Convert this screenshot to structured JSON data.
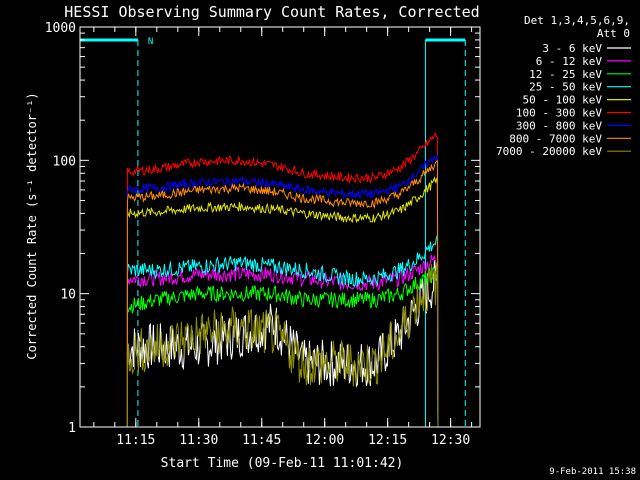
{
  "chart_data": {
    "type": "line",
    "title": "HESSI Observing Summary Count Rates, Corrected",
    "xlabel": "Start Time (09-Feb-11 11:01:42)",
    "ylabel": "Corrected Count Rate (s⁻¹ detector⁻¹)",
    "y_scale": "log",
    "ylim": [
      1,
      1000
    ],
    "xlim": [
      "11:01:42",
      "12:37:00"
    ],
    "x_ticks": [
      "11:15",
      "11:30",
      "11:45",
      "12:00",
      "12:15",
      "12:30"
    ],
    "y_ticks": [
      "1",
      "10",
      "100",
      "1000"
    ],
    "legend_header": [
      "Det 1,3,4,5,6,9,",
      "Att 0"
    ],
    "legend_position": "right",
    "footer": "9-Feb-2011 15:38",
    "night_marker": "N",
    "night_intervals": [
      [
        "11:01:42",
        "11:15:30"
      ],
      [
        "12:24:00",
        "12:33:30"
      ]
    ],
    "series": [
      {
        "name": "3 - 6 keV",
        "color": "#ffffff",
        "x": [
          "11:13",
          "11:20",
          "11:30",
          "11:40",
          "11:48",
          "11:55",
          "12:05",
          "12:12",
          "12:18",
          "12:22",
          "12:26",
          "12:27"
        ],
        "values": [
          4,
          4,
          4,
          5,
          6,
          3,
          3,
          3,
          5,
          8,
          12,
          12
        ]
      },
      {
        "name": "6 - 12 keV",
        "color": "#ff00ff",
        "x": [
          "11:13",
          "11:20",
          "11:30",
          "11:40",
          "11:48",
          "11:55",
          "12:05",
          "12:12",
          "12:18",
          "12:22",
          "12:26",
          "12:27"
        ],
        "values": [
          13,
          13,
          14,
          14,
          14,
          13,
          12,
          12,
          13,
          15,
          18,
          18
        ]
      },
      {
        "name": "12 - 25 keV",
        "color": "#00ff00",
        "x": [
          "11:13",
          "11:20",
          "11:30",
          "11:40",
          "11:48",
          "11:55",
          "12:05",
          "12:12",
          "12:18",
          "12:22",
          "12:26",
          "12:27"
        ],
        "values": [
          8,
          9,
          10,
          10,
          10,
          9,
          9,
          9,
          10,
          12,
          14,
          14
        ]
      },
      {
        "name": "25 - 50 keV",
        "color": "#00ffff",
        "x": [
          "11:13",
          "11:20",
          "11:30",
          "11:40",
          "11:48",
          "11:55",
          "12:05",
          "12:12",
          "12:18",
          "12:22",
          "12:26",
          "12:27"
        ],
        "values": [
          15,
          15,
          16,
          17,
          16,
          15,
          13,
          13,
          15,
          18,
          24,
          24
        ]
      },
      {
        "name": "50 - 100 keV",
        "color": "#e0e000",
        "x": [
          "11:13",
          "11:20",
          "11:30",
          "11:40",
          "11:48",
          "11:55",
          "12:05",
          "12:12",
          "12:18",
          "12:22",
          "12:26",
          "12:27"
        ],
        "values": [
          40,
          41,
          44,
          45,
          43,
          40,
          37,
          37,
          42,
          52,
          68,
          70
        ]
      },
      {
        "name": "100 - 300 keV",
        "color": "#ff0000",
        "x": [
          "11:13",
          "11:20",
          "11:30",
          "11:40",
          "11:48",
          "11:55",
          "12:05",
          "12:12",
          "12:18",
          "12:22",
          "12:26",
          "12:27"
        ],
        "values": [
          82,
          86,
          98,
          100,
          92,
          80,
          74,
          74,
          88,
          112,
          150,
          155
        ]
      },
      {
        "name": "300 - 800 keV",
        "color": "#0000ff",
        "x": [
          "11:13",
          "11:20",
          "11:30",
          "11:40",
          "11:48",
          "11:55",
          "12:05",
          "12:12",
          "12:18",
          "12:22",
          "12:26",
          "12:27"
        ],
        "values": [
          60,
          62,
          68,
          70,
          66,
          60,
          56,
          56,
          64,
          80,
          105,
          110
        ]
      },
      {
        "name": "800 - 7000 keV",
        "color": "#ff8c00",
        "x": [
          "11:13",
          "11:20",
          "11:30",
          "11:40",
          "11:48",
          "11:55",
          "12:05",
          "12:12",
          "12:18",
          "12:22",
          "12:26",
          "12:27"
        ],
        "values": [
          52,
          54,
          60,
          62,
          58,
          52,
          48,
          48,
          56,
          70,
          92,
          96
        ]
      },
      {
        "name": "7000 - 20000 keV",
        "color": "#8b8b00",
        "x": [
          "11:13",
          "11:20",
          "11:30",
          "11:40",
          "11:48",
          "11:55",
          "12:05",
          "12:12",
          "12:18",
          "12:22",
          "12:26",
          "12:27"
        ],
        "values": [
          3.5,
          4,
          5,
          5.5,
          5,
          3,
          3,
          3,
          5,
          9,
          12,
          12
        ]
      }
    ]
  }
}
